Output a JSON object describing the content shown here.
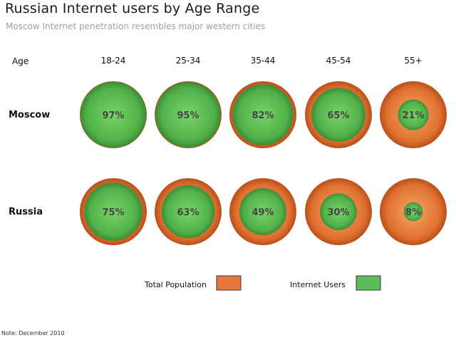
{
  "chart_data": {
    "type": "bubble-matrix",
    "title": "Russian Internet users by Age Range",
    "subtitle": "Moscow Internet penetration resembles major western cities",
    "row_header": "Age",
    "categories": [
      "18-24",
      "25-34",
      "35-44",
      "45-54",
      "55+"
    ],
    "series": [
      {
        "name": "Moscow",
        "values": [
          97,
          95,
          82,
          65,
          21
        ]
      },
      {
        "name": "Russia",
        "values": [
          75,
          63,
          49,
          30,
          8
        ]
      }
    ],
    "value_suffix": "%",
    "legend": [
      {
        "label": "Total Population",
        "color": "#e8773a"
      },
      {
        "label": "Internet Users",
        "color": "#5cbd5c"
      }
    ],
    "note": "Note: December 2010"
  },
  "colors": {
    "population_light": "#f0a060",
    "population_dark": "#c85a1e",
    "users_light": "#6dcb5e",
    "users_dark": "#3e9a3a",
    "label": "#444444"
  }
}
